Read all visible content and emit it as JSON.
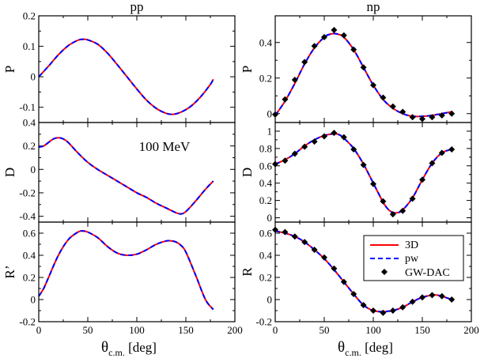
{
  "chart_data": {
    "type": "line",
    "column_titles": [
      "pp",
      "np"
    ],
    "annotation": "100 MeV",
    "xlabel": {
      "main": "θ",
      "sub": "c.m.",
      "unit": "[deg]"
    },
    "legend": {
      "placement": "right",
      "entries": [
        "3D",
        "pw",
        "GW-DAC"
      ]
    },
    "colors": {
      "3D": "#ff0000",
      "pw": "#0000ff",
      "data": "#000000"
    },
    "xlim": [
      0,
      200
    ],
    "xticks": [
      0,
      50,
      100,
      150,
      200
    ],
    "panels": [
      {
        "id": "pp-P",
        "column": "pp",
        "ylabel": "P",
        "ylim": [
          -0.15,
          0.2
        ],
        "yticks": [
          -0.1,
          0,
          0.1,
          0.2
        ],
        "ytick_labels": [
          "-0.1",
          "0",
          "0.1",
          "0.2"
        ],
        "series": [
          {
            "name": "3D",
            "x": [
              0,
              10,
              20,
              30,
              40,
              45,
              50,
              60,
              70,
              80,
              90,
              100,
              110,
              120,
              130,
              137,
              145,
              155,
              165,
              175,
              178
            ],
            "y": [
              0,
              0.035,
              0.072,
              0.102,
              0.12,
              0.123,
              0.121,
              0.107,
              0.078,
              0.04,
              0,
              -0.04,
              -0.077,
              -0.104,
              -0.12,
              -0.123,
              -0.116,
              -0.097,
              -0.066,
              -0.025,
              -0.008
            ]
          }
        ]
      },
      {
        "id": "pp-D",
        "column": "pp",
        "ylabel": "D",
        "ylim": [
          -0.45,
          0.4
        ],
        "yticks": [
          -0.4,
          -0.2,
          0,
          0.2,
          0.4
        ],
        "ytick_labels": [
          "-0.4",
          "-0.2",
          "0",
          "0.2",
          "0.4"
        ],
        "series": [
          {
            "name": "3D",
            "x": [
              0,
              5,
              10,
              15,
              20,
              25,
              30,
              40,
              50,
              60,
              70,
              80,
              90,
              100,
              110,
              120,
              130,
              140,
              145,
              150,
              160,
              170,
              178
            ],
            "y": [
              0.19,
              0.2,
              0.23,
              0.26,
              0.27,
              0.26,
              0.23,
              0.14,
              0.06,
              0,
              -0.05,
              -0.1,
              -0.15,
              -0.2,
              -0.24,
              -0.29,
              -0.33,
              -0.37,
              -0.38,
              -0.36,
              -0.27,
              -0.17,
              -0.1
            ]
          }
        ]
      },
      {
        "id": "pp-R'",
        "column": "pp",
        "ylabel": "R’",
        "ylim": [
          -0.2,
          0.7
        ],
        "yticks": [
          -0.2,
          0,
          0.2,
          0.4,
          0.6
        ],
        "ytick_labels": [
          "-0.2",
          "0",
          "0.2",
          "0.4",
          "0.6"
        ],
        "series": [
          {
            "name": "3D",
            "x": [
              0,
              5,
              10,
              20,
              30,
              40,
              45,
              50,
              60,
              70,
              80,
              90,
              100,
              110,
              120,
              130,
              135,
              140,
              145,
              150,
              160,
              170,
              178
            ],
            "y": [
              0.03,
              0.1,
              0.2,
              0.4,
              0.54,
              0.61,
              0.62,
              0.61,
              0.56,
              0.48,
              0.42,
              0.4,
              0.41,
              0.45,
              0.5,
              0.53,
              0.53,
              0.52,
              0.49,
              0.43,
              0.22,
              0,
              -0.09
            ]
          }
        ]
      },
      {
        "id": "np-P",
        "column": "np",
        "ylabel": "P",
        "ylim": [
          -0.05,
          0.55
        ],
        "yticks": [
          0,
          0.2,
          0.4
        ],
        "ytick_labels": [
          "0",
          "0.2",
          "0.4"
        ],
        "series": [
          {
            "name": "3D",
            "x": [
              0,
              10,
              20,
              30,
              40,
              50,
              55,
              60,
              65,
              70,
              80,
              90,
              100,
              110,
              120,
              130,
              140,
              150,
              160,
              170,
              180
            ],
            "y": [
              -0.01,
              0.07,
              0.17,
              0.28,
              0.37,
              0.43,
              0.445,
              0.45,
              0.445,
              0.43,
              0.36,
              0.26,
              0.16,
              0.08,
              0.03,
              0,
              -0.015,
              -0.015,
              -0.01,
              0,
              0.01
            ]
          }
        ],
        "points": {
          "x": [
            0,
            10,
            20,
            30,
            40,
            50,
            60,
            70,
            80,
            90,
            100,
            110,
            120,
            130,
            140,
            150,
            160,
            170,
            180
          ],
          "y": [
            -0.005,
            0.08,
            0.19,
            0.29,
            0.38,
            0.43,
            0.47,
            0.44,
            0.36,
            0.26,
            0.16,
            0.09,
            0.04,
            0.01,
            -0.02,
            -0.03,
            -0.02,
            -0.01,
            0
          ]
        }
      },
      {
        "id": "np-D",
        "column": "np",
        "ylabel": "D",
        "ylim": [
          -0.05,
          1.1
        ],
        "yticks": [
          0,
          0.2,
          0.4,
          0.6,
          0.8,
          1
        ],
        "ytick_labels": [
          "0",
          "0.2",
          "0.4",
          "0.6",
          "0.8",
          "1"
        ],
        "series": [
          {
            "name": "3D",
            "x": [
              0,
              10,
              20,
              30,
              40,
              50,
              60,
              65,
              70,
              80,
              90,
              100,
              110,
              115,
              120,
              125,
              130,
              140,
              150,
              160,
              170,
              180
            ],
            "y": [
              0.62,
              0.67,
              0.74,
              0.83,
              0.9,
              0.95,
              0.97,
              0.96,
              0.92,
              0.8,
              0.62,
              0.4,
              0.18,
              0.1,
              0.06,
              0.06,
              0.09,
              0.23,
              0.44,
              0.63,
              0.75,
              0.79
            ]
          }
        ],
        "points": {
          "x": [
            0,
            10,
            20,
            30,
            40,
            50,
            60,
            70,
            80,
            90,
            100,
            110,
            120,
            130,
            140,
            150,
            160,
            170,
            180
          ],
          "y": [
            0.62,
            0.66,
            0.74,
            0.82,
            0.88,
            0.94,
            0.98,
            0.93,
            0.79,
            0.61,
            0.39,
            0.19,
            0.04,
            0.08,
            0.22,
            0.44,
            0.63,
            0.75,
            0.79
          ]
        }
      },
      {
        "id": "np-R",
        "column": "np",
        "ylabel": "R",
        "ylim": [
          -0.2,
          0.7
        ],
        "yticks": [
          -0.2,
          0,
          0.2,
          0.4,
          0.6
        ],
        "ytick_labels": [
          "-0.2",
          "0",
          "0.2",
          "0.4",
          "0.6"
        ],
        "series": [
          {
            "name": "3D",
            "x": [
              0,
              10,
              20,
              30,
              40,
              50,
              60,
              70,
              80,
              90,
              100,
              110,
              115,
              120,
              130,
              140,
              150,
              160,
              165,
              170,
              180
            ],
            "y": [
              0.62,
              0.6,
              0.57,
              0.52,
              0.45,
              0.37,
              0.27,
              0.16,
              0.05,
              -0.05,
              -0.1,
              -0.11,
              -0.105,
              -0.1,
              -0.07,
              -0.02,
              0.02,
              0.04,
              0.04,
              0.03,
              0
            ]
          }
        ],
        "points": {
          "x": [
            0,
            10,
            20,
            30,
            40,
            50,
            60,
            70,
            80,
            90,
            100,
            110,
            120,
            130,
            140,
            150,
            160,
            170,
            180
          ],
          "y": [
            0.63,
            0.61,
            0.57,
            0.52,
            0.45,
            0.38,
            0.28,
            0.16,
            0.05,
            -0.05,
            -0.1,
            -0.12,
            -0.1,
            -0.07,
            -0.02,
            0.02,
            0.04,
            0.03,
            0
          ]
        }
      }
    ]
  }
}
